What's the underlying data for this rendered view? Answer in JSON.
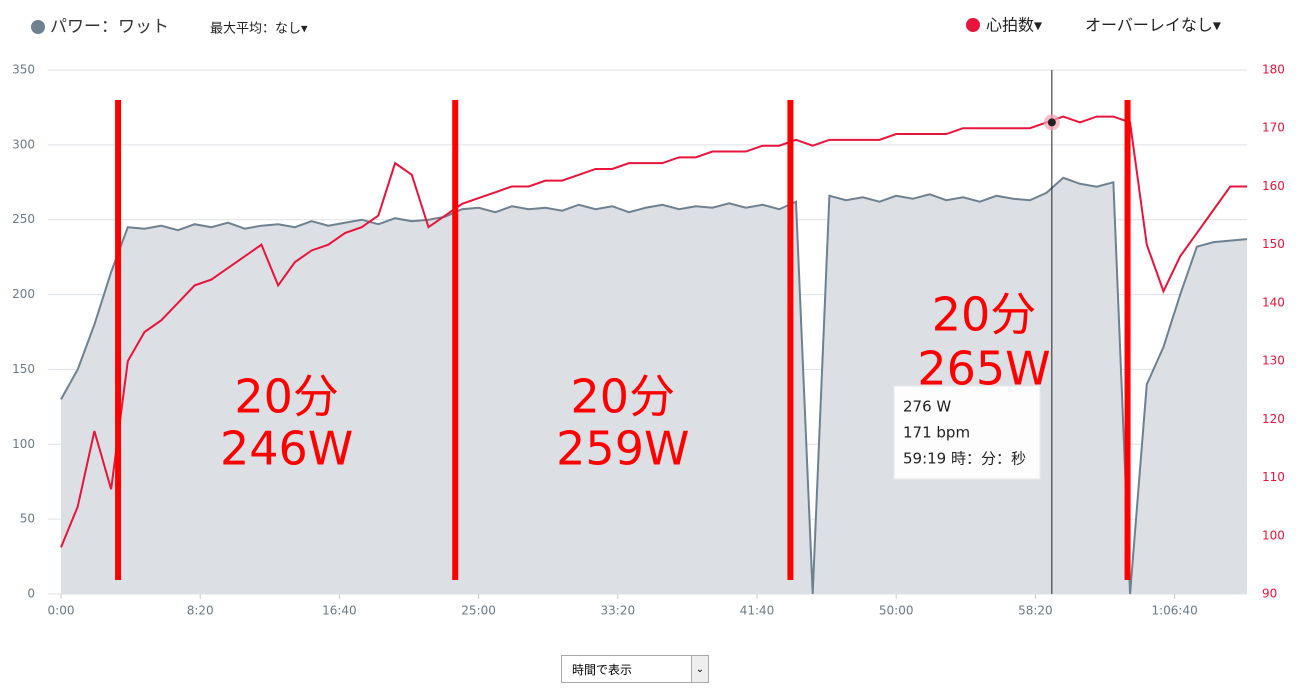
{
  "header": {
    "power_label": "パワー：ワット",
    "max_avg": "最大平均：なし▾",
    "hr_label": "心拍数▾",
    "overlay": "オーバーレイなし▾"
  },
  "footer": {
    "select": "時間で表示"
  },
  "chart_data": {
    "type": "line",
    "x": [
      0,
      60,
      120,
      180,
      240,
      300,
      360,
      420,
      480,
      540,
      600,
      660,
      720,
      780,
      840,
      900,
      960,
      1020,
      1080,
      1140,
      1200,
      1260,
      1320,
      1380,
      1440,
      1500,
      1560,
      1620,
      1680,
      1740,
      1800,
      1860,
      1920,
      1980,
      2040,
      2100,
      2160,
      2220,
      2280,
      2340,
      2400,
      2460,
      2520,
      2580,
      2640,
      2700,
      2760,
      2820,
      2880,
      2940,
      3000,
      3060,
      3120,
      3180,
      3240,
      3300,
      3360,
      3420,
      3480,
      3540,
      3600,
      3660,
      3720,
      3780,
      3840,
      3900,
      3960,
      4020,
      4080,
      4140,
      4200,
      4260
    ],
    "series": [
      {
        "name": "パワー：ワット",
        "color": "#6e8191",
        "fill": "#dce0e5",
        "axis": "y",
        "values": [
          130,
          150,
          180,
          215,
          245,
          244,
          246,
          243,
          247,
          245,
          248,
          244,
          246,
          247,
          245,
          249,
          246,
          248,
          250,
          247,
          251,
          249,
          250,
          252,
          257,
          258,
          255,
          259,
          257,
          258,
          256,
          260,
          257,
          259,
          255,
          258,
          260,
          257,
          259,
          258,
          261,
          258,
          260,
          257,
          262,
          0,
          266,
          263,
          265,
          262,
          266,
          264,
          267,
          263,
          265,
          262,
          266,
          264,
          263,
          268,
          278,
          274,
          272,
          275,
          0,
          140,
          165,
          200,
          232,
          235,
          236,
          237
        ]
      },
      {
        "name": "心拍数",
        "color": "#e8143c",
        "axis": "y2",
        "values": [
          98,
          105,
          118,
          108,
          130,
          135,
          137,
          140,
          143,
          144,
          146,
          148,
          150,
          143,
          147,
          149,
          150,
          152,
          153,
          155,
          164,
          162,
          153,
          155,
          157,
          158,
          159,
          160,
          160,
          161,
          161,
          162,
          163,
          163,
          164,
          164,
          164,
          165,
          165,
          166,
          166,
          166,
          167,
          167,
          168,
          167,
          168,
          168,
          168,
          168,
          169,
          169,
          169,
          169,
          170,
          170,
          170,
          170,
          170,
          171,
          172,
          171,
          172,
          172,
          171,
          150,
          142,
          148,
          152,
          156,
          160,
          160
        ]
      }
    ],
    "xlim": [
      0,
      4260
    ],
    "xticks": [
      {
        "value": 0,
        "label": "0:00"
      },
      {
        "value": 500,
        "label": "8:20"
      },
      {
        "value": 1000,
        "label": "16:40"
      },
      {
        "value": 1500,
        "label": "25:00"
      },
      {
        "value": 2000,
        "label": "33:20"
      },
      {
        "value": 2500,
        "label": "41:40"
      },
      {
        "value": 3000,
        "label": "50:00"
      },
      {
        "value": 3500,
        "label": "58:20"
      },
      {
        "value": 4000,
        "label": "1:06:40"
      }
    ],
    "ylim": [
      0,
      350
    ],
    "yticks": [
      0,
      50,
      100,
      150,
      200,
      250,
      300,
      350
    ],
    "y2lim": [
      90,
      180
    ],
    "y2ticks": [
      90,
      100,
      110,
      120,
      130,
      140,
      150,
      160,
      170,
      180
    ],
    "grid": true,
    "markers": [
      205,
      1416,
      2620,
      3831
    ],
    "marker_color": "#ff0000",
    "annotations": [
      {
        "lines": [
          "20分",
          "246W"
        ]
      },
      {
        "lines": [
          "20分",
          "259W"
        ]
      },
      {
        "lines": [
          "20分",
          "265W"
        ]
      }
    ],
    "tooltip": {
      "x": 3559,
      "hr": 171,
      "lines": [
        "276 W",
        "171 bpm",
        "59:19 時：分：秒"
      ]
    }
  }
}
